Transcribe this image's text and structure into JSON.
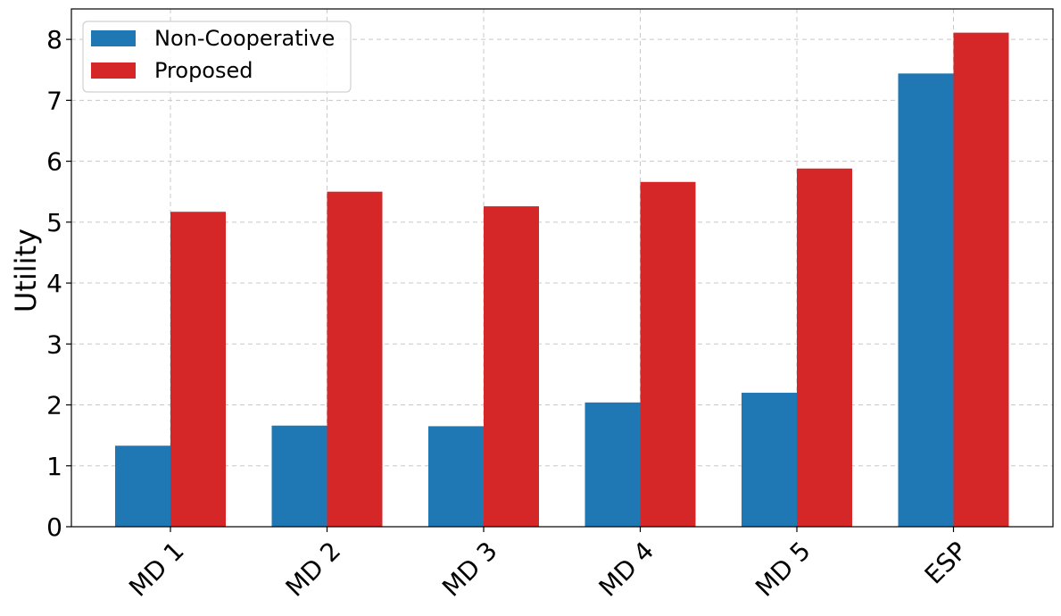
{
  "chart_data": {
    "type": "bar",
    "categories": [
      "MD 1",
      "MD 2",
      "MD 3",
      "MD 4",
      "MD 5",
      "ESP"
    ],
    "series": [
      {
        "name": "Non-Cooperative",
        "color": "#1f77b4",
        "values": [
          1.33,
          1.66,
          1.65,
          2.04,
          2.2,
          7.44
        ]
      },
      {
        "name": "Proposed",
        "color": "#d62728",
        "values": [
          5.17,
          5.5,
          5.26,
          5.66,
          5.88,
          8.11
        ]
      }
    ],
    "xlabel": "",
    "ylabel": "Utility",
    "ylim": [
      0,
      8.5
    ],
    "yticks": [
      0,
      1,
      2,
      3,
      4,
      5,
      6,
      7,
      8
    ],
    "grid": true,
    "legend_position": "top-left"
  }
}
